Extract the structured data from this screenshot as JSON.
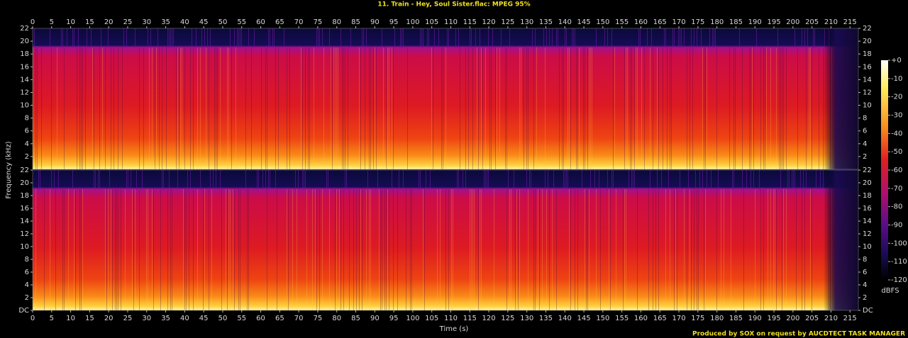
{
  "chart_data": {
    "type": "spectrogram",
    "title": "11. Train - Hey, Soul Sister.flac: MPEG 95%",
    "xlabel": "Time (s)",
    "ylabel": "Frequency (kHz)",
    "xlim": [
      0,
      217.2
    ],
    "xticks": [
      0,
      5,
      10,
      15,
      20,
      25,
      30,
      35,
      40,
      45,
      50,
      55,
      60,
      65,
      70,
      75,
      80,
      85,
      90,
      95,
      100,
      105,
      110,
      115,
      120,
      125,
      130,
      135,
      140,
      145,
      150,
      155,
      160,
      165,
      170,
      175,
      180,
      185,
      190,
      195,
      200,
      205,
      210,
      215
    ],
    "channels": [
      {
        "ylim": [
          0,
          22
        ],
        "yticks": [
          2,
          4,
          6,
          8,
          10,
          12,
          14,
          16,
          18,
          20,
          22
        ]
      },
      {
        "ylim": [
          0,
          22
        ],
        "yticks": [
          {
            "value": 0,
            "label": "DC"
          },
          2,
          4,
          6,
          8,
          10,
          12,
          14,
          16,
          18,
          20,
          22
        ]
      }
    ],
    "colorbar": {
      "label": "dBFS",
      "lim": [
        -120,
        0
      ],
      "ticks": [
        {
          "value": 0,
          "label": "+0"
        },
        -10,
        -20,
        -30,
        -40,
        -50,
        -60,
        -70,
        -80,
        -90,
        -100,
        -110,
        -120
      ]
    },
    "footer": "Produced by SOX on request by AUCDTECT TASK MANAGER"
  }
}
